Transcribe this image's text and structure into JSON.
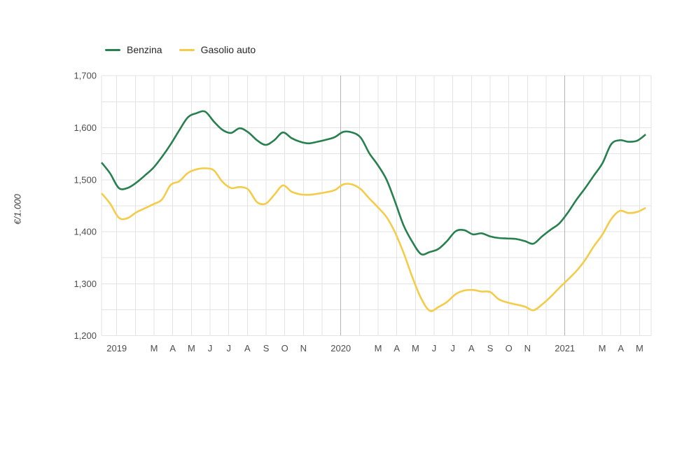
{
  "chart_data": {
    "type": "line",
    "title": "",
    "ylabel": "€/1.000",
    "xlabel": "",
    "ylim": [
      1200,
      1700
    ],
    "y_minor_step": 50,
    "grid": true,
    "legend_position": "top-left",
    "colors": {
      "benzina": "#27804e",
      "gasolio": "#f5cc49",
      "gridline": "#e3e3e3",
      "year_gridline": "#b4b4b4",
      "tick_text": "#4d4d4d"
    },
    "y_ticks": [
      {
        "value": 1200,
        "label": "1,200"
      },
      {
        "value": 1300,
        "label": "1,300"
      },
      {
        "value": 1400,
        "label": "1,400"
      },
      {
        "value": 1500,
        "label": "1,500"
      },
      {
        "value": 1600,
        "label": "1,600"
      },
      {
        "value": 1700,
        "label": "1,700"
      }
    ],
    "x_month_count": 29,
    "x_range_note": "weekly data, Jan 2019 - May 2021",
    "x_ticks": [
      {
        "m": 0,
        "label": "2019",
        "year": true
      },
      {
        "m": 2,
        "label": "M"
      },
      {
        "m": 3,
        "label": "A"
      },
      {
        "m": 4,
        "label": "M"
      },
      {
        "m": 5,
        "label": "J"
      },
      {
        "m": 6,
        "label": "J"
      },
      {
        "m": 7,
        "label": "A"
      },
      {
        "m": 8,
        "label": "S"
      },
      {
        "m": 9,
        "label": "O"
      },
      {
        "m": 10,
        "label": "N"
      },
      {
        "m": 12,
        "label": "2020",
        "year": true
      },
      {
        "m": 14,
        "label": "M"
      },
      {
        "m": 15,
        "label": "A"
      },
      {
        "m": 16,
        "label": "M"
      },
      {
        "m": 17,
        "label": "J"
      },
      {
        "m": 18,
        "label": "J"
      },
      {
        "m": 19,
        "label": "A"
      },
      {
        "m": 20,
        "label": "S"
      },
      {
        "m": 21,
        "label": "O"
      },
      {
        "m": 22,
        "label": "N"
      },
      {
        "m": 24,
        "label": "2021",
        "year": true
      },
      {
        "m": 26,
        "label": "M"
      },
      {
        "m": 27,
        "label": "A"
      },
      {
        "m": 28,
        "label": "M"
      }
    ],
    "x_start_frac": 0.0,
    "x_end_frac": 0.99,
    "series": [
      {
        "name": "Benzina",
        "color": "#27804e",
        "values": [
          1533,
          1512,
          1484,
          1484,
          1494,
          1508,
          1523,
          1544,
          1568,
          1595,
          1620,
          1628,
          1631,
          1612,
          1596,
          1590,
          1599,
          1591,
          1576,
          1567,
          1576,
          1591,
          1580,
          1573,
          1570,
          1573,
          1577,
          1582,
          1592,
          1591,
          1581,
          1551,
          1528,
          1500,
          1457,
          1411,
          1380,
          1357,
          1361,
          1367,
          1382,
          1401,
          1403,
          1395,
          1397,
          1391,
          1388,
          1387,
          1386,
          1382,
          1377,
          1391,
          1404,
          1416,
          1437,
          1462,
          1484,
          1508,
          1532,
          1568,
          1576,
          1573,
          1575,
          1587
        ]
      },
      {
        "name": "Gasolio auto",
        "color": "#f5cc49",
        "values": [
          1474,
          1454,
          1427,
          1426,
          1437,
          1445,
          1453,
          1462,
          1490,
          1497,
          1513,
          1520,
          1522,
          1518,
          1496,
          1484,
          1486,
          1481,
          1457,
          1454,
          1471,
          1489,
          1477,
          1472,
          1471,
          1473,
          1476,
          1480,
          1491,
          1491,
          1482,
          1464,
          1447,
          1428,
          1398,
          1358,
          1312,
          1272,
          1248,
          1255,
          1265,
          1280,
          1287,
          1288,
          1285,
          1284,
          1270,
          1264,
          1260,
          1256,
          1249,
          1260,
          1275,
          1292,
          1308,
          1325,
          1346,
          1372,
          1395,
          1424,
          1440,
          1436,
          1438,
          1446
        ]
      }
    ]
  }
}
